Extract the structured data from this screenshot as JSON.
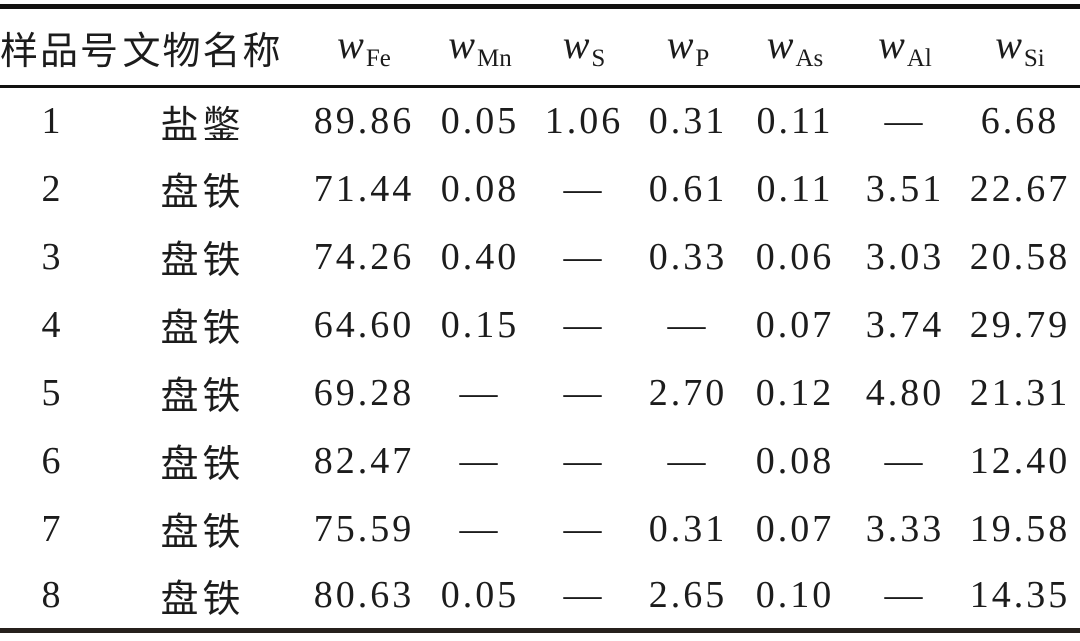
{
  "colors": {
    "background": "#ffffff",
    "text": "#1c1c1c",
    "rule": "#121110"
  },
  "table": {
    "columns": [
      {
        "id": "sample",
        "label": "样品号"
      },
      {
        "id": "name",
        "label": "文物名称"
      },
      {
        "id": "fe",
        "symbol": "w",
        "sub": "Fe"
      },
      {
        "id": "mn",
        "symbol": "w",
        "sub": "Mn"
      },
      {
        "id": "s",
        "symbol": "w",
        "sub": "S"
      },
      {
        "id": "p",
        "symbol": "w",
        "sub": "P"
      },
      {
        "id": "as",
        "symbol": "w",
        "sub": "As"
      },
      {
        "id": "al",
        "symbol": "w",
        "sub": "Al"
      },
      {
        "id": "si",
        "symbol": "w",
        "sub": "Si"
      }
    ],
    "rows": [
      {
        "cells": [
          "1",
          "盐鐅",
          "89.86",
          "0.05",
          "1.06",
          "0.31",
          "0.11",
          "—",
          "6.68"
        ]
      },
      {
        "cells": [
          "2",
          "盘铁",
          "71.44",
          "0.08",
          "—",
          "0.61",
          "0.11",
          "3.51",
          "22.67"
        ]
      },
      {
        "cells": [
          "3",
          "盘铁",
          "74.26",
          "0.40",
          "—",
          "0.33",
          "0.06",
          "3.03",
          "20.58"
        ]
      },
      {
        "cells": [
          "4",
          "盘铁",
          "64.60",
          "0.15",
          "—",
          "—",
          "0.07",
          "3.74",
          "29.79"
        ]
      },
      {
        "cells": [
          "5",
          "盘铁",
          "69.28",
          "—",
          "—",
          "2.70",
          "0.12",
          "4.80",
          "21.31"
        ]
      },
      {
        "cells": [
          "6",
          "盘铁",
          "82.47",
          "—",
          "—",
          "—",
          "0.08",
          "—",
          "12.40"
        ]
      },
      {
        "cells": [
          "7",
          "盘铁",
          "75.59",
          "—",
          "—",
          "0.31",
          "0.07",
          "3.33",
          "19.58"
        ]
      },
      {
        "cells": [
          "8",
          "盘铁",
          "80.63",
          "0.05",
          "—",
          "2.65",
          "0.10",
          "—",
          "14.35"
        ]
      }
    ]
  },
  "chart_data": {
    "type": "table",
    "title": "",
    "columns": [
      "样品号",
      "文物名称",
      "w_Fe",
      "w_Mn",
      "w_S",
      "w_P",
      "w_As",
      "w_Al",
      "w_Si"
    ],
    "rows": [
      [
        "1",
        "盐鐅",
        89.86,
        0.05,
        1.06,
        0.31,
        0.11,
        null,
        6.68
      ],
      [
        "2",
        "盘铁",
        71.44,
        0.08,
        null,
        0.61,
        0.11,
        3.51,
        22.67
      ],
      [
        "3",
        "盘铁",
        74.26,
        0.4,
        null,
        0.33,
        0.06,
        3.03,
        20.58
      ],
      [
        "4",
        "盘铁",
        64.6,
        0.15,
        null,
        null,
        0.07,
        3.74,
        29.79
      ],
      [
        "5",
        "盘铁",
        69.28,
        null,
        null,
        2.7,
        0.12,
        4.8,
        21.31
      ],
      [
        "6",
        "盘铁",
        82.47,
        null,
        null,
        null,
        0.08,
        null,
        12.4
      ],
      [
        "7",
        "盘铁",
        75.59,
        null,
        null,
        0.31,
        0.07,
        3.33,
        19.58
      ],
      [
        "8",
        "盘铁",
        80.63,
        0.05,
        null,
        2.65,
        0.1,
        null,
        14.35
      ]
    ],
    "missing_value_glyph": "—"
  }
}
